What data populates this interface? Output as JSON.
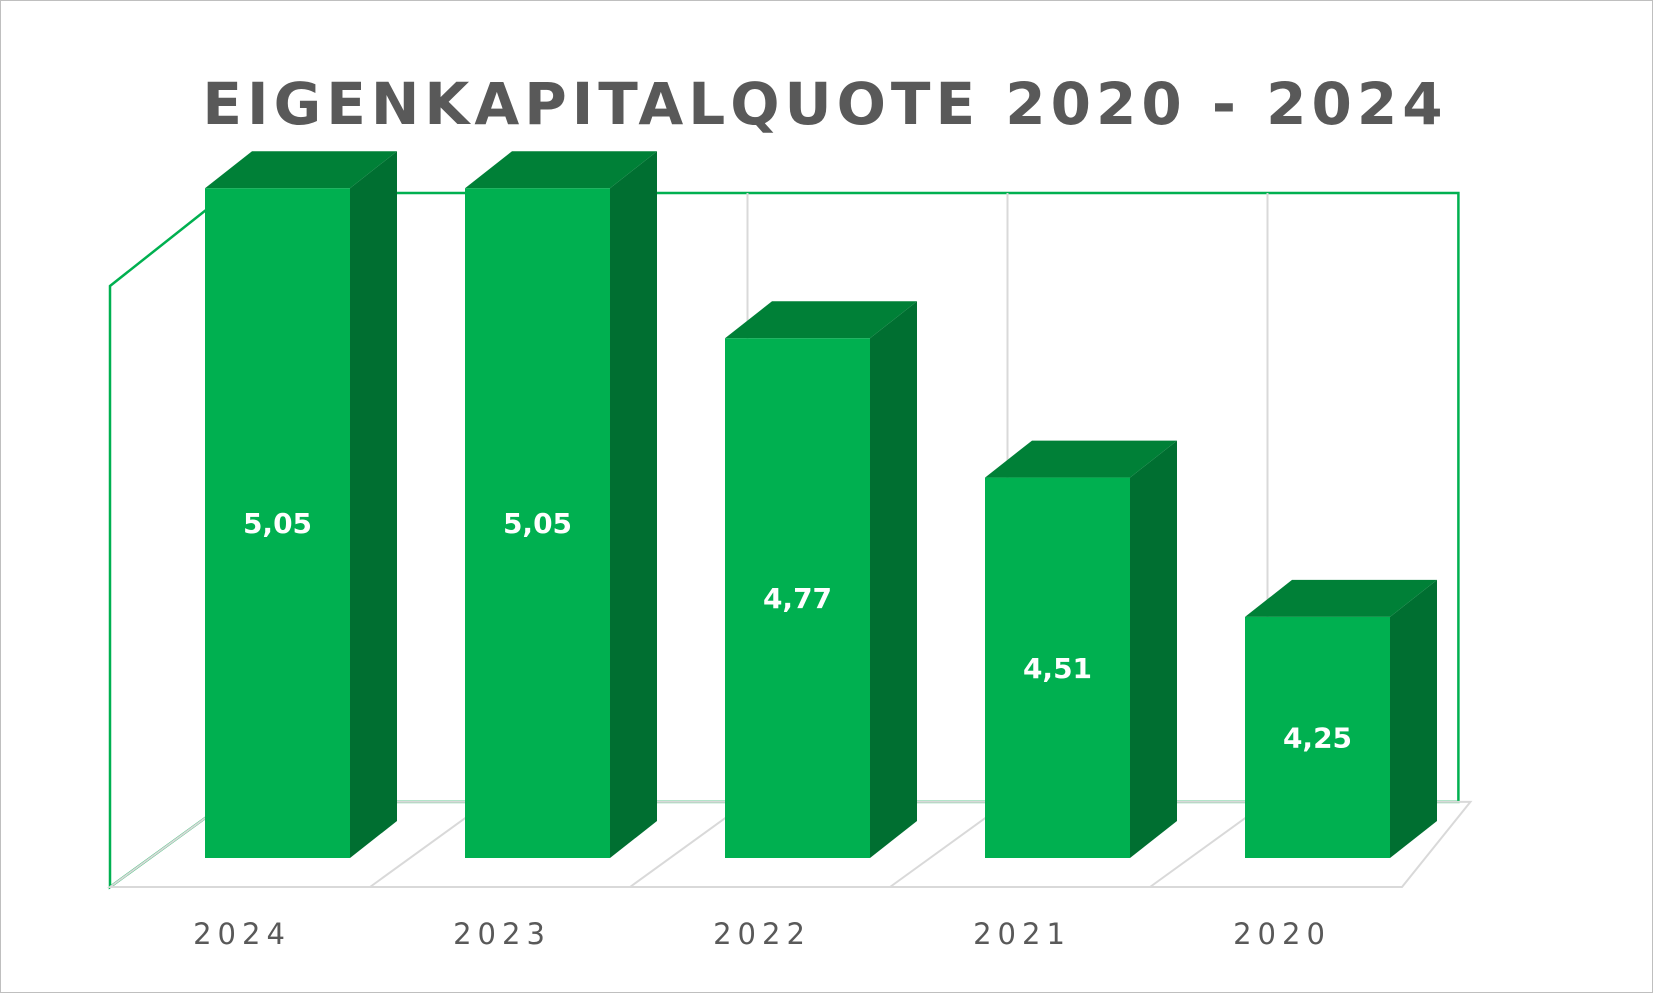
{
  "chart_data": {
    "type": "bar",
    "title": "EIGENKAPITALQUOTE 2020 - 2024",
    "categories": [
      "2024",
      "2023",
      "2022",
      "2021",
      "2020"
    ],
    "values": [
      5.05,
      5.05,
      4.77,
      4.51,
      4.25
    ],
    "value_labels": [
      "5,05",
      "5,05",
      "4,77",
      "4,51",
      "4,25"
    ],
    "xlabel": "",
    "ylabel": "",
    "ylim": [
      3.8,
      5.3
    ],
    "style": "3d-column",
    "grid": true,
    "legend": "none"
  },
  "colors": {
    "bar_front": "#00b050",
    "bar_top": "#008037",
    "bar_side": "#006f31",
    "frame_accent": "#00b050",
    "gridline": "#d9d9d9",
    "text": "#595959"
  }
}
